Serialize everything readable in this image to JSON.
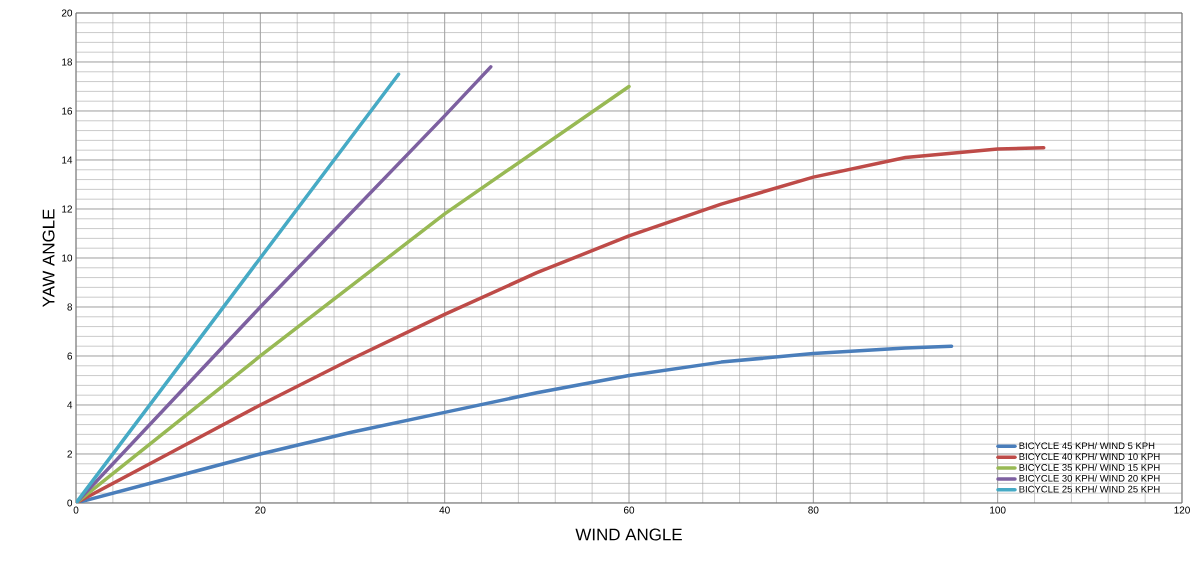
{
  "chart_data": {
    "type": "line",
    "xlabel": "WIND ANGLE",
    "ylabel": "YAW ANGLE",
    "xlim": [
      0,
      120
    ],
    "xticks": [
      0,
      20,
      40,
      60,
      80,
      100,
      120
    ],
    "ylim": [
      0,
      20
    ],
    "yticks": [
      0,
      2,
      4,
      6,
      8,
      10,
      12,
      14,
      16,
      18,
      20
    ],
    "grid": true,
    "legend": "bottom right",
    "marker": "none",
    "line_style": "solid",
    "series": [
      {
        "name": "BICYCLE 45 KPH/ WIND 5 KPH",
        "color": "#4a7ebb",
        "x": [
          0,
          10,
          20,
          30,
          40,
          50,
          60,
          70,
          80,
          90,
          95
        ],
        "values": [
          0,
          1.0,
          2.0,
          2.9,
          3.7,
          4.5,
          5.2,
          5.75,
          6.1,
          6.33,
          6.4
        ]
      },
      {
        "name": "BICYCLE 40 KPH/ WIND 10 KPH",
        "color": "#be4b48",
        "x": [
          0,
          10,
          20,
          30,
          40,
          50,
          60,
          70,
          80,
          90,
          100,
          105
        ],
        "values": [
          0,
          2.0,
          4.0,
          5.9,
          7.7,
          9.4,
          10.9,
          12.2,
          13.3,
          14.1,
          14.45,
          14.5
        ]
      },
      {
        "name": "BICYCLE 35 KPH/ WIND 15 KPH",
        "color": "#98b954",
        "x": [
          0,
          20,
          40,
          60
        ],
        "values": [
          0,
          6.0,
          11.8,
          17.0
        ]
      },
      {
        "name": "BICYCLE 30 KPH/ WIND 20 KPH",
        "color": "#7d60a0",
        "x": [
          0,
          20,
          40,
          45
        ],
        "values": [
          0,
          8.0,
          15.8,
          17.8
        ]
      },
      {
        "name": "BICYCLE 25 KPH/ WIND 25 KPH",
        "color": "#46aac5",
        "x": [
          0,
          20,
          35
        ],
        "values": [
          0,
          10.0,
          17.5
        ]
      }
    ]
  }
}
